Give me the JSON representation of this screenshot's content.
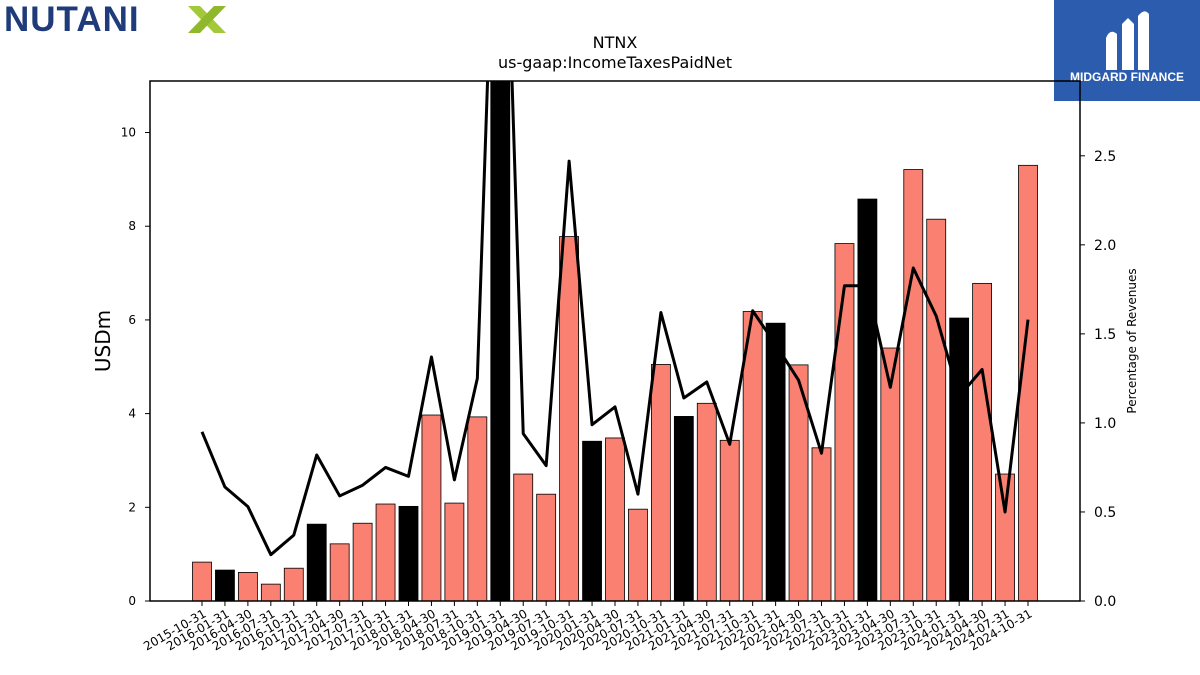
{
  "brand": {
    "company_logo_text": "NUTANIX",
    "publisher_logo_text": "MIDGARD FINANCE"
  },
  "colors": {
    "bar_regular": "#fa8072",
    "bar_q4": "#000000",
    "line": "#000000",
    "nutanix_blue": "#1f3b7a",
    "nutanix_green": "#a3c93a",
    "midgard_bg": "#2b5cad"
  },
  "chart_data": {
    "type": "bar",
    "title": "NTNX",
    "subtitle": "us-gaap:IncomeTaxesPaidNet",
    "ylabel": "USDm",
    "y2label": "Percentage of Revenues",
    "ylim": [
      0,
      11.1
    ],
    "y2lim": [
      0,
      2.92
    ],
    "yticks": [
      "0",
      "2",
      "4",
      "6",
      "8",
      "10"
    ],
    "y2ticks": [
      "0.0",
      "0.5",
      "1.0",
      "1.5",
      "2.0",
      "2.5"
    ],
    "categories": [
      "2015-10-31",
      "2016-01-31",
      "2016-04-30",
      "2016-07-31",
      "2016-10-31",
      "2017-01-31",
      "2017-04-30",
      "2017-07-31",
      "2017-10-31",
      "2018-01-31",
      "2018-04-30",
      "2018-07-31",
      "2018-10-31",
      "2019-01-31",
      "2019-04-30",
      "2019-07-31",
      "2019-10-31",
      "2020-01-31",
      "2020-04-30",
      "2020-07-31",
      "2020-10-31",
      "2021-01-31",
      "2021-04-30",
      "2021-07-31",
      "2021-10-31",
      "2022-01-31",
      "2022-04-30",
      "2022-07-31",
      "2022-10-31",
      "2023-01-31",
      "2023-04-30",
      "2023-07-31",
      "2023-10-31",
      "2024-01-31",
      "2024-04-30",
      "2024-07-31",
      "2024-10-31"
    ],
    "series": [
      {
        "kind": "bar",
        "axis": "left",
        "values": [
          0.83,
          0.66,
          0.61,
          0.36,
          0.7,
          1.64,
          1.22,
          1.66,
          2.07,
          2.02,
          3.97,
          2.09,
          3.93,
          11.1,
          2.71,
          2.28,
          7.78,
          3.41,
          3.48,
          1.96,
          5.05,
          3.94,
          4.22,
          3.43,
          6.18,
          5.93,
          5.04,
          3.27,
          7.63,
          8.58,
          5.4,
          9.21,
          8.15,
          6.04,
          6.78,
          2.71,
          9.3
        ],
        "q4_flags": [
          false,
          true,
          false,
          false,
          false,
          true,
          false,
          false,
          false,
          true,
          false,
          false,
          false,
          true,
          false,
          false,
          false,
          true,
          false,
          false,
          false,
          true,
          false,
          false,
          false,
          true,
          false,
          false,
          false,
          true,
          false,
          false,
          false,
          true,
          false,
          false,
          false
        ]
      },
      {
        "kind": "line",
        "axis": "right",
        "values": [
          0.95,
          0.64,
          0.53,
          0.26,
          0.37,
          0.82,
          0.59,
          0.65,
          0.75,
          0.7,
          1.37,
          0.68,
          1.25,
          5.0,
          0.94,
          0.76,
          2.47,
          0.99,
          1.09,
          0.6,
          1.62,
          1.14,
          1.23,
          0.88,
          1.63,
          1.44,
          1.24,
          0.83,
          1.77,
          1.77,
          1.2,
          1.87,
          1.6,
          1.15,
          1.3,
          0.5,
          1.58
        ]
      }
    ]
  }
}
